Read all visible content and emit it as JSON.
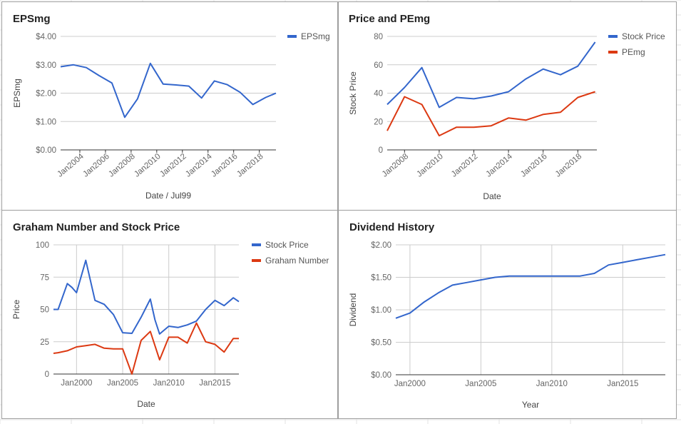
{
  "chart_data": [
    {
      "id": "eps",
      "type": "line",
      "title": "EPSmg",
      "xlabel": "Date / Jul99",
      "ylabel": "EPSmg",
      "xlim": [
        2002.5,
        2019.3
      ],
      "ylim": [
        0,
        4
      ],
      "yticks": [
        0,
        1,
        2,
        3,
        4
      ],
      "ytick_labels": [
        "$0.00",
        "$1.00",
        "$2.00",
        "$3.00",
        "$4.00"
      ],
      "xticks": [
        2004,
        2006,
        2008,
        2010,
        2012,
        2014,
        2016,
        2018
      ],
      "xtick_labels": [
        "Jan2004",
        "Jan2006",
        "Jan2008",
        "Jan2010",
        "Jan2012",
        "Jan2014",
        "Jan2016",
        "Jan2018"
      ],
      "legend": "right",
      "grid": "horizontal",
      "series": [
        {
          "name": "EPSmg",
          "color": "#3366cc",
          "x": [
            2002.5,
            2003.5,
            2004.5,
            2005.5,
            2006.5,
            2007.5,
            2008.5,
            2009.5,
            2010.5,
            2011.5,
            2012.5,
            2013.5,
            2014.5,
            2015.5,
            2016.5,
            2017.5,
            2018.5,
            2019.3
          ],
          "y": [
            2.93,
            3.0,
            2.9,
            2.62,
            2.36,
            1.15,
            1.8,
            3.05,
            2.32,
            2.29,
            2.25,
            1.83,
            2.43,
            2.3,
            2.03,
            1.6,
            1.85,
            2.0
          ]
        }
      ]
    },
    {
      "id": "price_pe",
      "type": "line",
      "title": "Price and PEmg",
      "xlabel": "Date",
      "ylabel": "Stock Price",
      "xlim": [
        2007,
        2019.1
      ],
      "ylim": [
        0,
        80
      ],
      "yticks": [
        0,
        20,
        40,
        60,
        80
      ],
      "ytick_labels": [
        "0",
        "20",
        "40",
        "60",
        "80"
      ],
      "xticks": [
        2008,
        2010,
        2012,
        2014,
        2016,
        2018
      ],
      "xtick_labels": [
        "Jan2008",
        "Jan2010",
        "Jan2012",
        "Jan2014",
        "Jan2016",
        "Jan2018"
      ],
      "legend": "right",
      "grid": "horizontal",
      "series": [
        {
          "name": "Stock Price",
          "color": "#3366cc",
          "x": [
            2007.0,
            2008.0,
            2009.0,
            2010.0,
            2011.0,
            2012.0,
            2013.0,
            2014.0,
            2015.0,
            2016.0,
            2017.0,
            2018.0,
            2019.0
          ],
          "y": [
            32,
            44,
            58,
            30,
            37,
            36,
            38,
            41,
            50,
            57,
            53,
            59,
            76
          ]
        },
        {
          "name": "PEmg",
          "color": "#dc3912",
          "x": [
            2007.0,
            2008.0,
            2009.0,
            2010.0,
            2011.0,
            2012.0,
            2013.0,
            2014.0,
            2015.0,
            2016.0,
            2017.0,
            2018.0,
            2019.0
          ],
          "y": [
            13.5,
            37.5,
            32,
            10,
            16,
            16,
            17,
            22.5,
            21,
            25,
            26.5,
            37,
            41
          ]
        }
      ]
    },
    {
      "id": "graham",
      "type": "line",
      "title": "Graham Number and Stock Price",
      "xlabel": "Date",
      "ylabel": "Price",
      "xlim": [
        1997.5,
        2017.6
      ],
      "ylim": [
        0,
        100
      ],
      "yticks": [
        0,
        25,
        50,
        75,
        100
      ],
      "ytick_labels": [
        "0",
        "25",
        "50",
        "75",
        "100"
      ],
      "xticks": [
        2000,
        2005,
        2010,
        2015
      ],
      "xtick_labels": [
        "Jan2000",
        "Jan2005",
        "Jan2010",
        "Jan2015"
      ],
      "legend": "right",
      "grid": "both",
      "series": [
        {
          "name": "Stock Price",
          "color": "#3366cc",
          "x": [
            1997.5,
            1998.0,
            1999.0,
            1999.5,
            2000.0,
            2001.0,
            2002.0,
            2003.0,
            2004.0,
            2005.0,
            2006.0,
            2007.0,
            2008.0,
            2008.5,
            2009.0,
            2010.0,
            2011.0,
            2012.0,
            2013.0,
            2014.0,
            2015.0,
            2016.0,
            2017.0,
            2017.6
          ],
          "y": [
            50,
            50,
            70,
            67,
            63,
            88,
            57,
            54,
            46,
            32,
            31.5,
            44,
            58,
            42,
            31,
            37,
            36,
            38,
            41,
            50,
            57,
            53,
            59,
            56
          ]
        },
        {
          "name": "Graham Number",
          "color": "#dc3912",
          "x": [
            1997.5,
            1998.0,
            1999.0,
            2000.0,
            2001.0,
            2002.0,
            2003.0,
            2004.0,
            2005.0,
            2006.0,
            2007.0,
            2008.0,
            2009.0,
            2010.0,
            2011.0,
            2012.0,
            2013.0,
            2014.0,
            2015.0,
            2016.0,
            2017.0,
            2017.6
          ],
          "y": [
            16,
            16.5,
            18,
            21,
            22,
            23,
            20,
            19.5,
            19.5,
            0,
            26,
            33,
            11,
            28.5,
            28.5,
            24,
            39.5,
            25,
            23,
            17,
            27.5,
            27.5
          ]
        }
      ]
    },
    {
      "id": "dividend",
      "type": "line",
      "title": "Dividend History",
      "xlabel": "Year",
      "ylabel": "Dividend",
      "xlim": [
        1999,
        2018
      ],
      "ylim": [
        0,
        2
      ],
      "yticks": [
        0,
        0.5,
        1,
        1.5,
        2
      ],
      "ytick_labels": [
        "$0.00",
        "$0.50",
        "$1.00",
        "$1.50",
        "$2.00"
      ],
      "xticks": [
        2000,
        2005,
        2010,
        2015
      ],
      "xtick_labels": [
        "Jan2000",
        "Jan2005",
        "Jan2010",
        "Jan2015"
      ],
      "legend": "none",
      "grid": "both",
      "series": [
        {
          "name": "",
          "color": "#3366cc",
          "x": [
            1999,
            2000,
            2001,
            2002,
            2003,
            2004,
            2005,
            2006,
            2007,
            2008,
            2009,
            2010,
            2011,
            2012,
            2013,
            2014,
            2015,
            2016,
            2017,
            2018
          ],
          "y": [
            0.87,
            0.95,
            1.12,
            1.26,
            1.38,
            1.42,
            1.46,
            1.5,
            1.52,
            1.52,
            1.52,
            1.52,
            1.52,
            1.52,
            1.56,
            1.69,
            1.73,
            1.77,
            1.81,
            1.85
          ]
        }
      ]
    }
  ]
}
